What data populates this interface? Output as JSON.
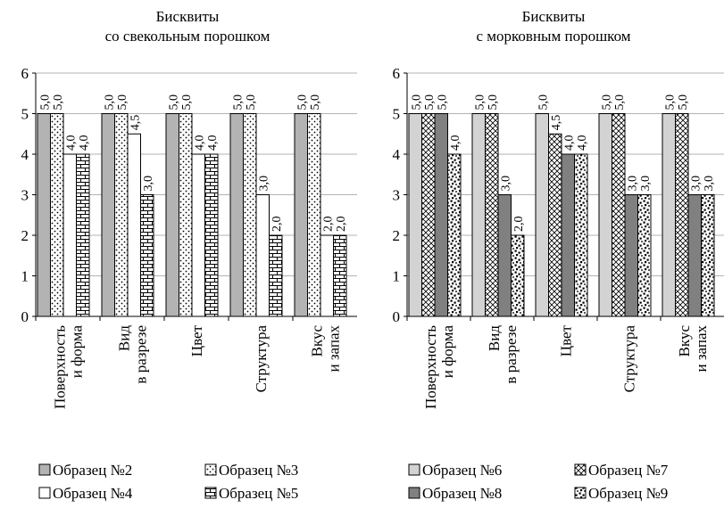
{
  "chart_data": [
    {
      "type": "bar",
      "title": "Бисквиты\nсо свекольным порошком",
      "categories": [
        "Поверхность\nи форма",
        "Вид\nв разрезе",
        "Цвет",
        "Структура",
        "Вкус\nи запах"
      ],
      "ylim": [
        0,
        6
      ],
      "yticks": [
        "0",
        "1",
        "2",
        "3",
        "4",
        "5",
        "6"
      ],
      "grid": true,
      "legend_position": "bottom",
      "series": [
        {
          "name": "Образец №2",
          "values": [
            5.0,
            5.0,
            5.0,
            5.0,
            5.0
          ],
          "labels": [
            "5,0",
            "5,0",
            "5,0",
            "5,0",
            "5,0"
          ],
          "pattern": "solid-gray",
          "color": "#b3b3b3"
        },
        {
          "name": "Образец №3",
          "values": [
            5.0,
            5.0,
            5.0,
            5.0,
            5.0
          ],
          "labels": [
            "5,0",
            "5,0",
            "5,0",
            "5,0",
            "5,0"
          ],
          "pattern": "dots",
          "color": "#ffffff"
        },
        {
          "name": "Образец №4",
          "values": [
            4.0,
            4.5,
            4.0,
            3.0,
            2.0
          ],
          "labels": [
            "4,0",
            "4,5",
            "4,0",
            "3,0",
            "2,0"
          ],
          "pattern": "white",
          "color": "#ffffff"
        },
        {
          "name": "Образец №5",
          "values": [
            4.0,
            3.0,
            4.0,
            2.0,
            2.0
          ],
          "labels": [
            "4,0",
            "3,0",
            "4,0",
            "2,0",
            "2,0"
          ],
          "pattern": "bricks",
          "color": "#ffffff"
        }
      ]
    },
    {
      "type": "bar",
      "title": "Бисквиты\nс морковным порошком",
      "categories": [
        "Поверхность\nи форма",
        "Вид\nв разрезе",
        "Цвет",
        "Структура",
        "Вкус\nи запах"
      ],
      "ylim": [
        0,
        6
      ],
      "yticks": [
        "0",
        "1",
        "2",
        "3",
        "4",
        "5",
        "6"
      ],
      "grid": true,
      "legend_position": "bottom",
      "series": [
        {
          "name": "Образец №6",
          "values": [
            5.0,
            5.0,
            5.0,
            5.0,
            5.0
          ],
          "labels": [
            "5,0",
            "5,0",
            "5,0",
            "5,0",
            "5,0"
          ],
          "pattern": "solid-lightgray",
          "color": "#d0d0d0"
        },
        {
          "name": "Образец №7",
          "values": [
            5.0,
            5.0,
            4.5,
            5.0,
            5.0
          ],
          "labels": [
            "5,0",
            "5,0",
            "4,5",
            "5,0",
            "5,0"
          ],
          "pattern": "crosshatch",
          "color": "#ffffff"
        },
        {
          "name": "Образец №8",
          "values": [
            5.0,
            3.0,
            4.0,
            3.0,
            3.0
          ],
          "labels": [
            "5,0",
            "3,0",
            "4,0",
            "3,0",
            "3,0"
          ],
          "pattern": "solid-darkgray",
          "color": "#808080"
        },
        {
          "name": "Образец №9",
          "values": [
            4.0,
            2.0,
            4.0,
            3.0,
            3.0
          ],
          "labels": [
            "4,0",
            "2,0",
            "4,0",
            "3,0",
            "3,0"
          ],
          "pattern": "confetti",
          "color": "#ffffff"
        }
      ]
    }
  ]
}
